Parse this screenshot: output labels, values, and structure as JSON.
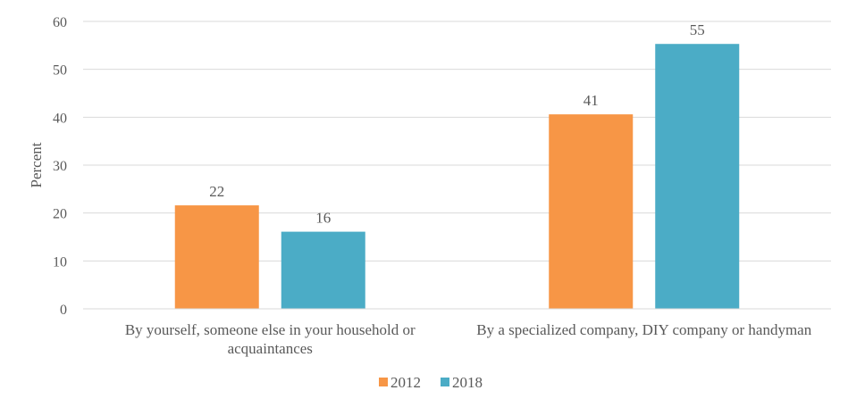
{
  "chart_data": {
    "type": "bar",
    "categories": [
      [
        "By yourself, someone else in your household or",
        "acquaintances"
      ],
      [
        "By a specialized company, DIY company or handyman"
      ]
    ],
    "series": [
      {
        "name": "2012",
        "values": [
          21.6,
          40.6
        ],
        "labels": [
          "22",
          "41"
        ],
        "color": "#F79646"
      },
      {
        "name": "2018",
        "values": [
          16.1,
          55.3
        ],
        "labels": [
          "16",
          "55"
        ],
        "color": "#4BACC6"
      }
    ],
    "ylabel": "Percent",
    "xlabel": "",
    "ylim": [
      0,
      60
    ],
    "yticks": [
      0,
      10,
      20,
      30,
      40,
      50,
      60
    ],
    "grid": true,
    "legend": "bottom-center"
  }
}
